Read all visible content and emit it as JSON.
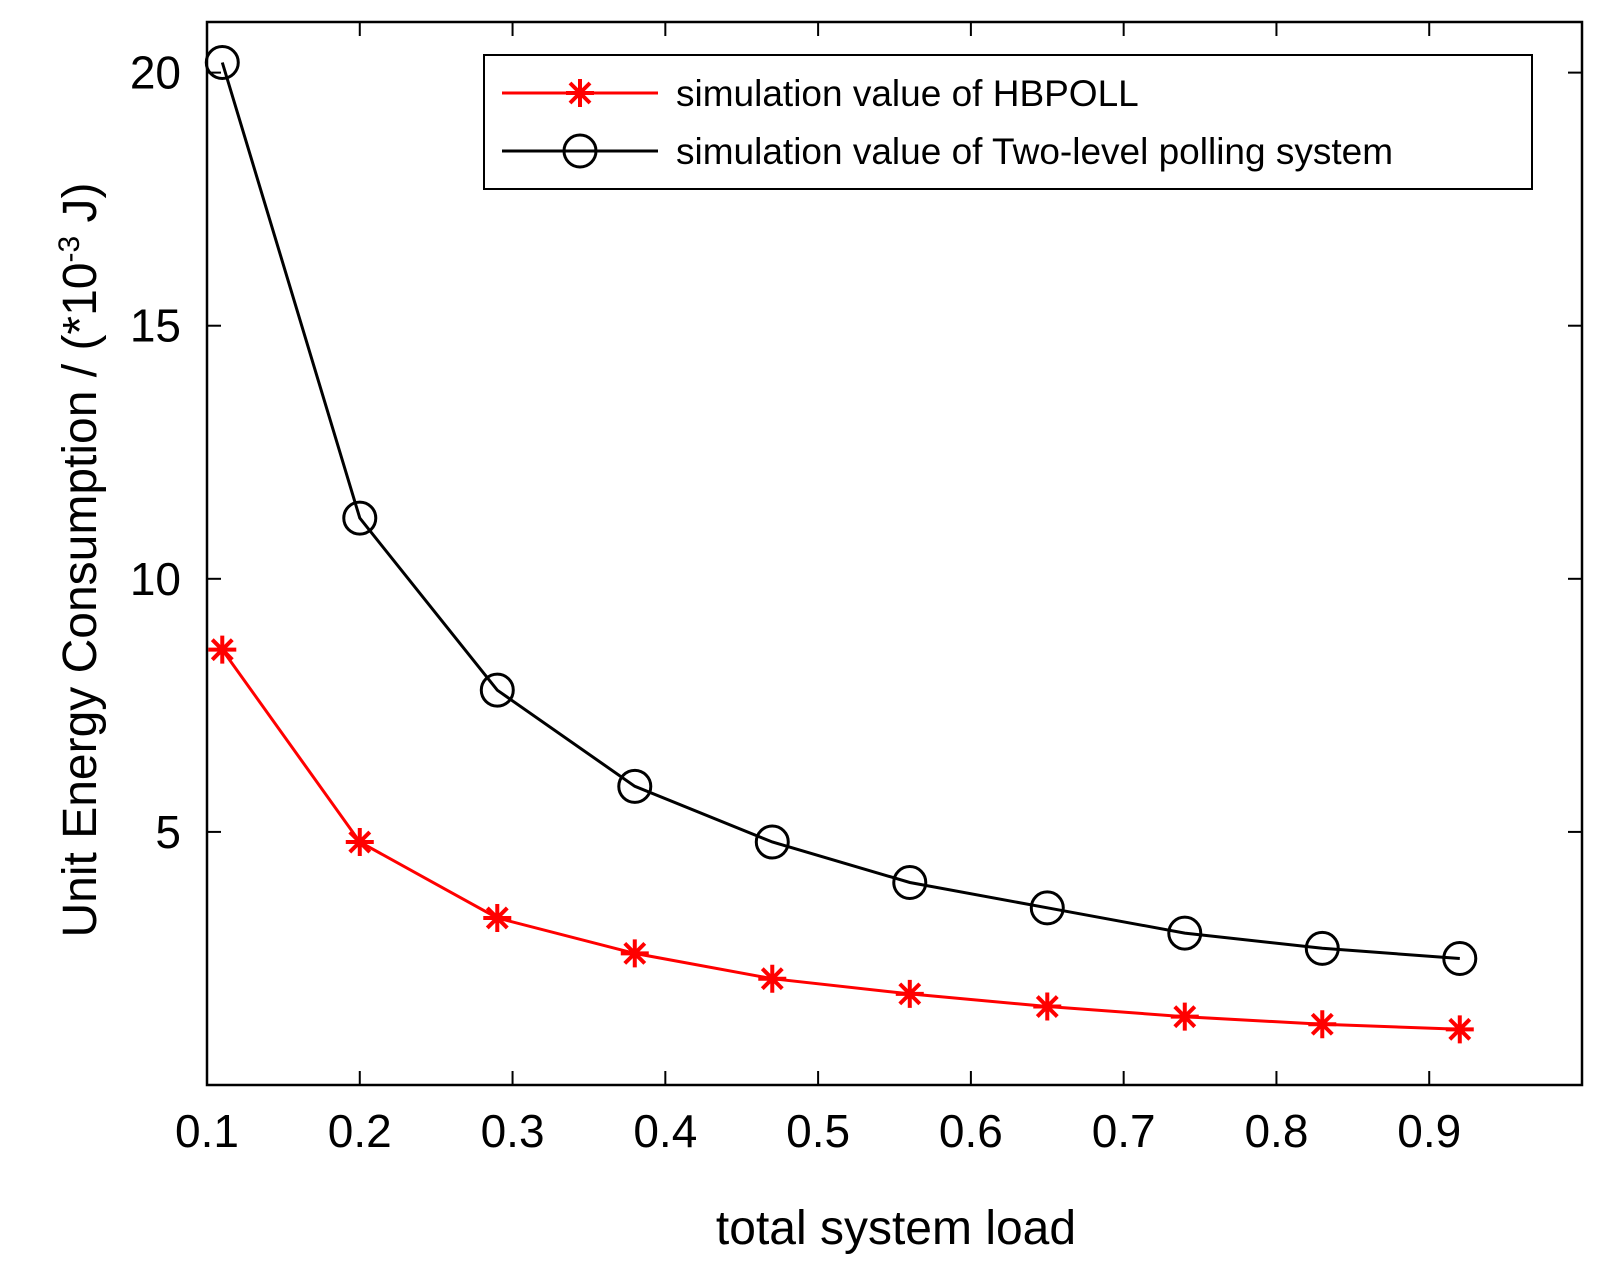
{
  "chart_data": {
    "type": "line",
    "xlabel": "total system load",
    "ylabel": {
      "base": "Unit Energy Consumption / (*10",
      "sup": "-3",
      "tail": " J)"
    },
    "xlim": [
      0.1,
      1.0
    ],
    "ylim": [
      0,
      21
    ],
    "xticks": [
      0.1,
      0.2,
      0.3,
      0.4,
      0.5,
      0.6,
      0.7,
      0.8,
      0.9
    ],
    "yticks": [
      5,
      10,
      15,
      20
    ],
    "x": [
      0.11,
      0.2,
      0.29,
      0.38,
      0.47,
      0.56,
      0.65,
      0.74,
      0.83,
      0.92
    ],
    "series": [
      {
        "name": "simulation value of HBPOLL",
        "color": "#ff0000",
        "marker": "asterisk",
        "values": [
          8.6,
          4.8,
          3.3,
          2.6,
          2.1,
          1.8,
          1.55,
          1.35,
          1.2,
          1.1
        ]
      },
      {
        "name": "simulation value of Two-level polling system",
        "color": "#000000",
        "marker": "circle",
        "values": [
          20.2,
          11.2,
          7.8,
          5.9,
          4.8,
          4.0,
          3.5,
          3.0,
          2.7,
          2.5
        ]
      }
    ],
    "legend_position": "top-right",
    "grid": false
  }
}
